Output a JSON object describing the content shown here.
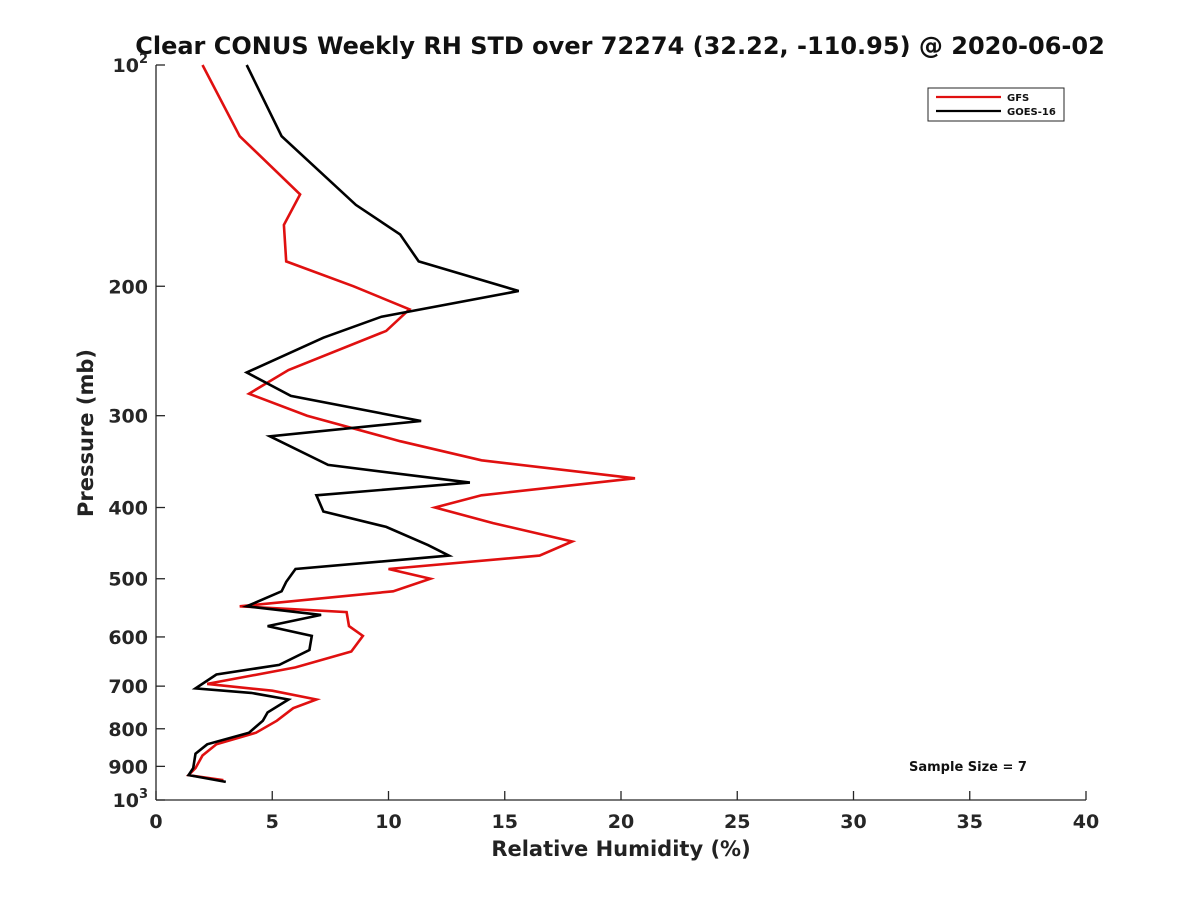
{
  "chart_data": {
    "type": "line",
    "title": "Clear CONUS Weekly RH STD over 72274 (32.22, -110.95) @ 2020-06-02",
    "xlabel": "Relative Humidity (%)",
    "ylabel": "Pressure (mb)",
    "xlim": [
      0,
      40
    ],
    "ylim": [
      100,
      1000
    ],
    "yscale": "log",
    "y_reversed": true,
    "grid": false,
    "legend_position": "top-right",
    "x_ticks": [
      0,
      5,
      10,
      15,
      20,
      25,
      30,
      35,
      40
    ],
    "x_tick_labels": [
      "0",
      "5",
      "10",
      "15",
      "20",
      "25",
      "30",
      "35",
      "40"
    ],
    "y_ticks": [
      {
        "value": 100,
        "base": "10",
        "exp": "2"
      },
      {
        "value": 200,
        "label": "200"
      },
      {
        "value": 300,
        "label": "300"
      },
      {
        "value": 400,
        "label": "400"
      },
      {
        "value": 500,
        "label": "500"
      },
      {
        "value": 600,
        "label": "600"
      },
      {
        "value": 700,
        "label": "700"
      },
      {
        "value": 800,
        "label": "800"
      },
      {
        "value": 900,
        "label": "900"
      },
      {
        "value": 1000,
        "base": "10",
        "exp": "3"
      }
    ],
    "series": [
      {
        "name": "GFS",
        "color": "#e01010",
        "points": [
          [
            2.0,
            100
          ],
          [
            3.6,
            125
          ],
          [
            6.2,
            150
          ],
          [
            5.5,
            165
          ],
          [
            5.6,
            185
          ],
          [
            8.5,
            200
          ],
          [
            10.9,
            215
          ],
          [
            9.9,
            230
          ],
          [
            5.7,
            260
          ],
          [
            4.0,
            280
          ],
          [
            6.5,
            300
          ],
          [
            10.5,
            325
          ],
          [
            14.0,
            345
          ],
          [
            20.6,
            365
          ],
          [
            14.0,
            385
          ],
          [
            12.0,
            400
          ],
          [
            14.5,
            420
          ],
          [
            17.9,
            445
          ],
          [
            16.5,
            465
          ],
          [
            10.0,
            485
          ],
          [
            11.8,
            500
          ],
          [
            10.2,
            520
          ],
          [
            3.6,
            545
          ],
          [
            8.2,
            555
          ],
          [
            8.3,
            580
          ],
          [
            8.9,
            598
          ],
          [
            8.4,
            628
          ],
          [
            6.0,
            660
          ],
          [
            2.2,
            695
          ],
          [
            5.0,
            710
          ],
          [
            6.9,
            730
          ],
          [
            5.9,
            750
          ],
          [
            5.2,
            780
          ],
          [
            4.3,
            810
          ],
          [
            2.6,
            840
          ],
          [
            2.0,
            870
          ],
          [
            1.7,
            905
          ],
          [
            1.4,
            925
          ],
          [
            2.9,
            940
          ]
        ]
      },
      {
        "name": "GOES-16",
        "color": "#000000",
        "points": [
          [
            3.9,
            100
          ],
          [
            5.4,
            125
          ],
          [
            8.6,
            155
          ],
          [
            10.5,
            170
          ],
          [
            11.3,
            185
          ],
          [
            15.6,
            203
          ],
          [
            9.7,
            220
          ],
          [
            7.2,
            235
          ],
          [
            3.9,
            262
          ],
          [
            5.8,
            282
          ],
          [
            11.4,
            305
          ],
          [
            4.9,
            320
          ],
          [
            7.4,
            350
          ],
          [
            13.5,
            370
          ],
          [
            6.9,
            385
          ],
          [
            7.2,
            405
          ],
          [
            9.9,
            425
          ],
          [
            11.7,
            450
          ],
          [
            12.6,
            465
          ],
          [
            6.0,
            485
          ],
          [
            5.6,
            505
          ],
          [
            5.4,
            520
          ],
          [
            3.9,
            545
          ],
          [
            7.1,
            560
          ],
          [
            4.8,
            580
          ],
          [
            6.7,
            598
          ],
          [
            6.6,
            625
          ],
          [
            5.3,
            655
          ],
          [
            2.6,
            675
          ],
          [
            1.7,
            705
          ],
          [
            4.1,
            715
          ],
          [
            5.7,
            730
          ],
          [
            4.8,
            760
          ],
          [
            4.6,
            780
          ],
          [
            4.0,
            810
          ],
          [
            2.2,
            840
          ],
          [
            1.7,
            865
          ],
          [
            1.6,
            905
          ],
          [
            1.4,
            925
          ],
          [
            3.0,
            945
          ]
        ]
      }
    ],
    "annotations": [
      {
        "text": "Sample Size = 7"
      }
    ]
  }
}
